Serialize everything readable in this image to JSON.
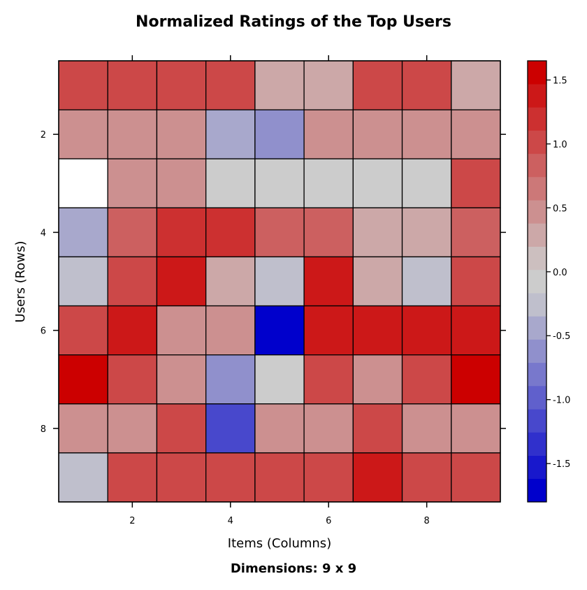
{
  "chart_data": {
    "type": "heatmap",
    "title": "Normalized Ratings of the Top Users",
    "subtitle": "Dimensions: 9 x 9",
    "xlabel": "Items (Columns)",
    "ylabel": "Users (Rows)",
    "x_ticks": [
      "2",
      "4",
      "6",
      "8"
    ],
    "y_ticks": [
      "2",
      "4",
      "6",
      "8"
    ],
    "rows": 9,
    "cols": 9,
    "values": [
      [
        1.0,
        1.0,
        1.0,
        1.0,
        0.3,
        0.3,
        1.0,
        1.0,
        0.3
      ],
      [
        0.5,
        0.5,
        0.5,
        -0.5,
        -0.6,
        0.5,
        0.5,
        0.5,
        0.5
      ],
      [
        null,
        0.5,
        0.5,
        0.0,
        0.0,
        0.0,
        0.0,
        0.0,
        1.0
      ],
      [
        -0.5,
        0.8,
        1.2,
        1.2,
        0.8,
        0.8,
        0.3,
        0.3,
        0.8
      ],
      [
        -0.2,
        1.0,
        1.4,
        0.3,
        -0.2,
        1.4,
        0.3,
        -0.2,
        1.0
      ],
      [
        1.0,
        1.4,
        0.5,
        0.5,
        -1.8,
        1.4,
        1.4,
        1.4,
        1.4
      ],
      [
        1.6,
        1.0,
        0.5,
        -0.7,
        0.0,
        1.0,
        0.5,
        1.0,
        1.6
      ],
      [
        0.5,
        0.5,
        1.0,
        -1.2,
        0.5,
        0.5,
        1.0,
        0.5,
        0.5
      ],
      [
        -0.2,
        1.0,
        1.0,
        1.0,
        1.0,
        1.0,
        1.4,
        1.0,
        1.0
      ]
    ],
    "colorbar": {
      "range": [
        -1.8,
        1.65
      ],
      "tick_values": [
        1.5,
        1.0,
        0.5,
        0.0,
        -0.5,
        -1.0,
        -1.5
      ],
      "tick_labels": [
        "1.5",
        "1.0",
        "0.5",
        "0.0",
        "-0.5",
        "-1.0",
        "-1.5"
      ],
      "colors": [
        "#0000CC",
        "#1818CC",
        "#3030CC",
        "#4848CC",
        "#6060CC",
        "#7878CC",
        "#9090CC",
        "#A8A8CC",
        "#BFBFCC",
        "#CCCCCC",
        "#CCBFBF",
        "#CCA8A8",
        "#CC9090",
        "#CC7878",
        "#CC6060",
        "#CC4848",
        "#CC3030",
        "#CC1818",
        "#CC0000"
      ]
    },
    "missing_color": "#FFFFFF"
  }
}
